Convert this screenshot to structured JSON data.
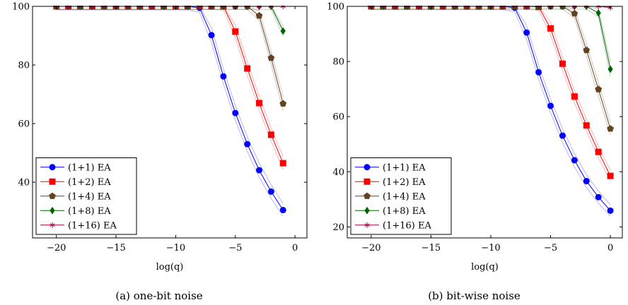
{
  "chart_data": [
    {
      "type": "line",
      "caption": "(a) one-bit noise",
      "xlabel": "log(q)",
      "ylabel": "",
      "xlim": [
        -22,
        1
      ],
      "ylim": [
        21,
        100
      ],
      "xticks": [
        -20,
        -15,
        -10,
        -5,
        0
      ],
      "xtick_labels": [
        "−20",
        "−15",
        "−10",
        "−5",
        "0"
      ],
      "yticks": [
        40,
        60,
        80,
        100
      ],
      "ytick_labels": [
        "40",
        "60",
        "80",
        "100"
      ],
      "grid": false,
      "legend": "bottom-left",
      "x": [
        -20,
        -19,
        -18,
        -17,
        -16,
        -15,
        -14,
        -13,
        -12,
        -11,
        -10,
        -9,
        -8,
        -7,
        -6,
        -5,
        -4,
        -3,
        -2,
        -1
      ],
      "series": [
        {
          "name": "(1+1) EA",
          "color": "#0000ff",
          "marker": "circle",
          "values": [
            100,
            100,
            100,
            100,
            100,
            100,
            100,
            100,
            100,
            100,
            100,
            100,
            99.5,
            90.2,
            76.1,
            63.6,
            53.0,
            44.1,
            36.8,
            30.5
          ],
          "band": [
            1.2,
            1.2,
            1.2,
            1.2,
            1.2,
            1.2,
            1.2,
            1.2,
            1.2,
            1.2,
            1.2,
            1.2,
            1.5,
            2.5,
            2.5,
            2.5,
            2.5,
            2.4,
            2.3,
            2.2
          ]
        },
        {
          "name": "(1+2) EA",
          "color": "#ff0000",
          "marker": "square",
          "values": [
            100,
            100,
            100,
            100,
            100,
            100,
            100,
            100,
            100,
            100,
            100,
            100,
            100,
            100,
            100,
            91.4,
            78.8,
            67.0,
            56.2,
            46.5
          ],
          "band": [
            1.0,
            1.0,
            1.0,
            1.0,
            1.0,
            1.0,
            1.0,
            1.0,
            1.0,
            1.0,
            1.0,
            1.0,
            1.0,
            1.0,
            1.2,
            2.2,
            2.3,
            2.3,
            2.2,
            2.1
          ]
        },
        {
          "name": "(1+4) EA",
          "color": "#654321",
          "marker": "pentagon",
          "values": [
            100,
            100,
            100,
            100,
            100,
            100,
            100,
            100,
            100,
            100,
            100,
            100,
            100,
            100,
            100,
            100,
            100,
            96.8,
            82.4,
            66.8
          ],
          "band": [
            1.0,
            1.0,
            1.0,
            1.0,
            1.0,
            1.0,
            1.0,
            1.0,
            1.0,
            1.0,
            1.0,
            1.0,
            1.0,
            1.0,
            1.0,
            1.0,
            1.0,
            1.6,
            2.2,
            2.4
          ]
        },
        {
          "name": "(1+8) EA",
          "color": "#006400",
          "marker": "diamond",
          "values": [
            100,
            100,
            100,
            100,
            100,
            100,
            100,
            100,
            100,
            100,
            100,
            100,
            100,
            100,
            100,
            100,
            100,
            100,
            100,
            91.6
          ],
          "band": [
            1.0,
            1.0,
            1.0,
            1.0,
            1.0,
            1.0,
            1.0,
            1.0,
            1.0,
            1.0,
            1.0,
            1.0,
            1.0,
            1.0,
            1.0,
            1.0,
            1.0,
            1.0,
            1.0,
            1.8
          ]
        },
        {
          "name": "(1+16) EA",
          "color": "#a0004a",
          "marker": "star",
          "values": [
            100,
            100,
            100,
            100,
            100,
            100,
            100,
            100,
            100,
            100,
            100,
            100,
            100,
            100,
            100,
            100,
            100,
            100,
            100,
            100
          ],
          "band": [
            0,
            0,
            0,
            0,
            0,
            0,
            0,
            0,
            0,
            0,
            0,
            0,
            0,
            0,
            0,
            0,
            0,
            0,
            0,
            0
          ]
        }
      ]
    },
    {
      "type": "line",
      "caption": "(b) bit-wise noise",
      "xlabel": "log(q)",
      "ylabel": "",
      "xlim": [
        -22,
        1
      ],
      "ylim": [
        16,
        100
      ],
      "xticks": [
        -20,
        -15,
        -10,
        -5,
        0
      ],
      "xtick_labels": [
        "−20",
        "−15",
        "−10",
        "−5",
        "0"
      ],
      "yticks": [
        20,
        40,
        60,
        80,
        100
      ],
      "ytick_labels": [
        "20",
        "40",
        "60",
        "80",
        "100"
      ],
      "grid": false,
      "legend": "bottom-left",
      "x": [
        -20,
        -19,
        -18,
        -17,
        -16,
        -15,
        -14,
        -13,
        -12,
        -11,
        -10,
        -9,
        -8,
        -7,
        -6,
        -5,
        -4,
        -3,
        -2,
        -1,
        0
      ],
      "series": [
        {
          "name": "(1+1) EA",
          "color": "#0000ff",
          "marker": "circle",
          "values": [
            100,
            100,
            100,
            100,
            100,
            100,
            100,
            100,
            100,
            100,
            100,
            100,
            99.5,
            90.5,
            76.1,
            63.9,
            53.1,
            44.2,
            36.6,
            30.8,
            25.9
          ],
          "band": [
            1.2,
            1.2,
            1.2,
            1.2,
            1.2,
            1.2,
            1.2,
            1.2,
            1.2,
            1.2,
            1.2,
            1.2,
            1.5,
            2.5,
            2.6,
            2.5,
            2.5,
            2.4,
            2.3,
            2.2,
            2.1
          ]
        },
        {
          "name": "(1+2) EA",
          "color": "#ff0000",
          "marker": "square",
          "values": [
            100,
            100,
            100,
            100,
            100,
            100,
            100,
            100,
            100,
            100,
            100,
            100,
            100,
            100,
            99.8,
            92.0,
            79.2,
            67.3,
            56.8,
            47.2,
            38.5
          ],
          "band": [
            1.0,
            1.0,
            1.0,
            1.0,
            1.0,
            1.0,
            1.0,
            1.0,
            1.0,
            1.0,
            1.0,
            1.0,
            1.0,
            1.0,
            1.2,
            2.3,
            2.4,
            2.3,
            2.2,
            2.1,
            2.0
          ]
        },
        {
          "name": "(1+4) EA",
          "color": "#654321",
          "marker": "pentagon",
          "values": [
            100,
            100,
            100,
            100,
            100,
            100,
            100,
            100,
            100,
            100,
            100,
            100,
            100,
            100,
            100,
            100,
            100,
            97.4,
            84.1,
            69.9,
            55.6
          ],
          "band": [
            1.0,
            1.0,
            1.0,
            1.0,
            1.0,
            1.0,
            1.0,
            1.0,
            1.0,
            1.0,
            1.0,
            1.0,
            1.0,
            1.0,
            1.0,
            1.0,
            1.0,
            1.6,
            2.3,
            2.4,
            2.3
          ]
        },
        {
          "name": "(1+8) EA",
          "color": "#006400",
          "marker": "diamond",
          "values": [
            100,
            100,
            100,
            100,
            100,
            100,
            100,
            100,
            100,
            100,
            100,
            100,
            100,
            100,
            100,
            100,
            100,
            100,
            100,
            97.6,
            77.2
          ],
          "band": [
            1.0,
            1.0,
            1.0,
            1.0,
            1.0,
            1.0,
            1.0,
            1.0,
            1.0,
            1.0,
            1.0,
            1.0,
            1.0,
            1.0,
            1.0,
            1.0,
            1.0,
            1.0,
            1.0,
            1.4,
            2.6
          ]
        },
        {
          "name": "(1+16) EA",
          "color": "#a0004a",
          "marker": "star",
          "values": [
            100,
            100,
            100,
            100,
            100,
            100,
            100,
            100,
            100,
            100,
            100,
            100,
            100,
            100,
            100,
            100,
            100,
            100,
            100,
            100,
            99.6
          ],
          "band": [
            0,
            0,
            0,
            0,
            0,
            0,
            0,
            0,
            0,
            0,
            0,
            0,
            0,
            0,
            0,
            0,
            0,
            0,
            0,
            0,
            0
          ]
        }
      ]
    }
  ]
}
